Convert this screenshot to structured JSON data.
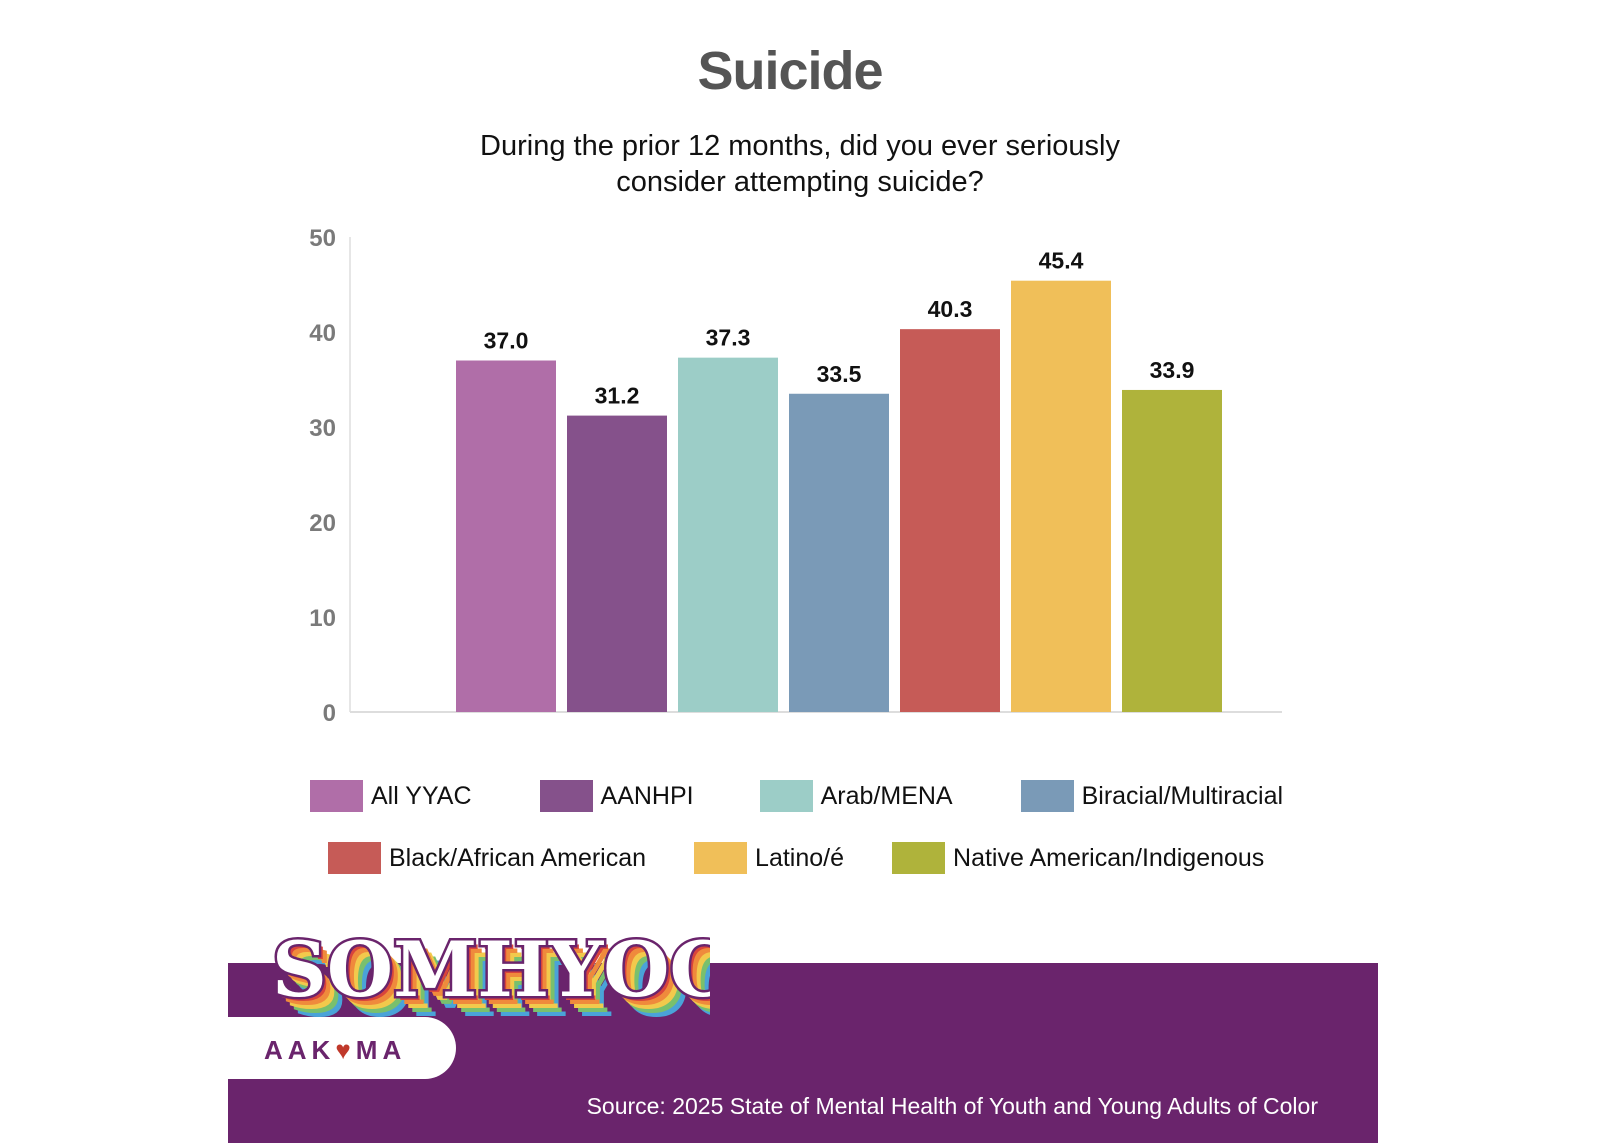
{
  "chart_data": {
    "type": "bar",
    "title": "Suicide",
    "subtitle_lines": [
      "During the prior 12 months, did you ever seriously",
      "consider attempting suicide?"
    ],
    "categories": [
      "All YYAC",
      "AANHPI",
      "Arab/MENA",
      "Biracial/Multiracial",
      "Black/African American",
      "Latino/é",
      "Native American/Indigenous"
    ],
    "values": [
      37.0,
      31.2,
      37.3,
      33.5,
      40.3,
      45.4,
      33.9
    ],
    "value_labels": [
      "37.0",
      "31.2",
      "37.3",
      "33.5",
      "40.3",
      "45.4",
      "33.9"
    ],
    "colors": [
      "#b06ea8",
      "#85518b",
      "#9ccdc7",
      "#7a9ab7",
      "#c65b57",
      "#f0bf59",
      "#afb33b"
    ],
    "ylim": [
      0,
      50
    ],
    "yticks": [
      "0",
      "10",
      "20",
      "30",
      "40",
      "50"
    ],
    "xlabel": "",
    "ylabel": "",
    "grid": false,
    "legend": {
      "placement": "bottom",
      "rows": [
        [
          0,
          1,
          2,
          3
        ],
        [
          4,
          5,
          6
        ]
      ]
    }
  },
  "branding": {
    "logo_text": "SOMHYOC",
    "sub_logo_pre": "AAK",
    "sub_logo_heart": "♥",
    "sub_logo_post": "MA",
    "band_color": "#6a246c"
  },
  "source": "Source: 2025 State of Mental Health of Youth and Young Adults of Color"
}
